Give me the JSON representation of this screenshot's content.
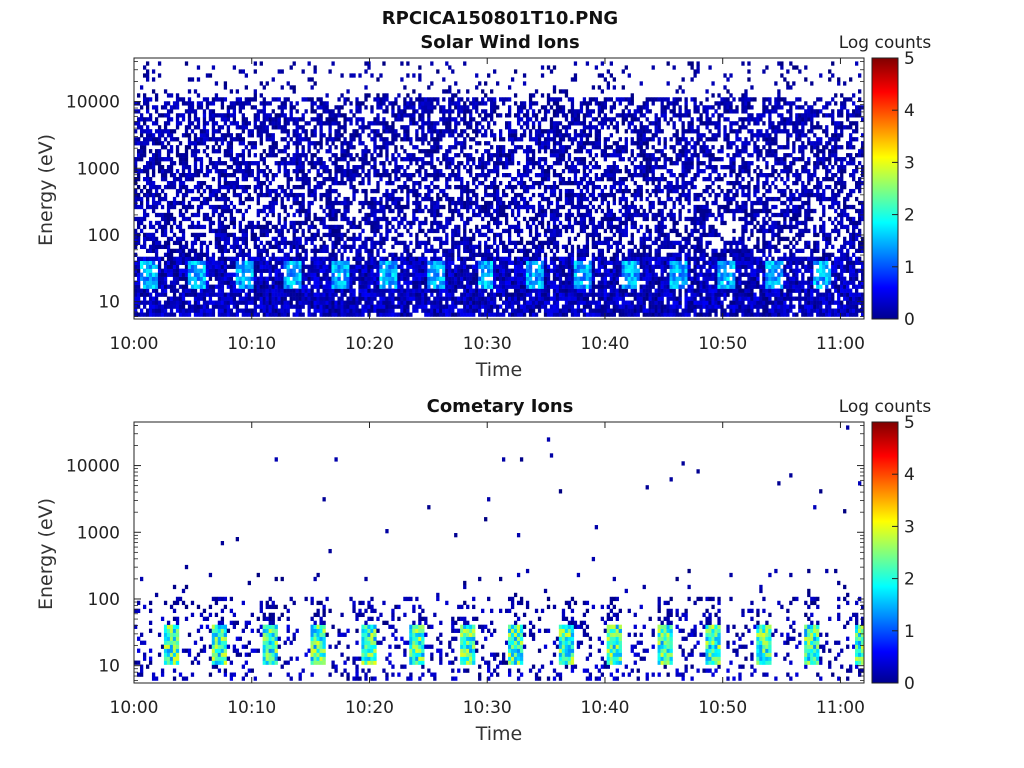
{
  "figure_title": "RPCICA150801T10.PNG",
  "chart_data": [
    {
      "type": "heatmap",
      "title": "Solar Wind Ions",
      "xlabel": "Time",
      "ylabel": "Energy (eV)",
      "x_ticks": [
        "10:00",
        "10:10",
        "10:20",
        "10:30",
        "10:40",
        "10:50",
        "11:00"
      ],
      "xlim": [
        "10:00",
        "11:02"
      ],
      "y_scale": "log",
      "y_ticks": [
        "10",
        "100",
        "1000",
        "10000"
      ],
      "ylim": [
        5.5,
        45000
      ],
      "colorbar": {
        "label": "Log counts",
        "range": [
          0,
          5
        ],
        "ticks": [
          "0",
          "1",
          "2",
          "3",
          "4",
          "5"
        ],
        "colormap": "jet"
      },
      "description_of_data": "Dense low-level counts (log ~0-0.5) across all energies 10-10000 eV, enhanced counts (log ~1-2) in 15-40 eV band"
    },
    {
      "type": "heatmap",
      "title": "Cometary Ions",
      "xlabel": "Time",
      "ylabel": "Energy (eV)",
      "x_ticks": [
        "10:00",
        "10:10",
        "10:20",
        "10:30",
        "10:40",
        "10:50",
        "11:00"
      ],
      "xlim": [
        "10:00",
        "11:02"
      ],
      "y_scale": "log",
      "y_ticks": [
        "10",
        "100",
        "1000",
        "10000"
      ],
      "ylim": [
        5.5,
        45000
      ],
      "colorbar": {
        "label": "Log counts",
        "range": [
          0,
          5
        ],
        "ticks": [
          "0",
          "1",
          "2",
          "3",
          "4",
          "5"
        ],
        "colormap": "jet"
      },
      "description_of_data": "Periodic bursts (~every 4 min) of log counts 1.5-3 in 12-40 eV band, sparse counts up to ~100 eV, isolated points at higher energies"
    }
  ]
}
